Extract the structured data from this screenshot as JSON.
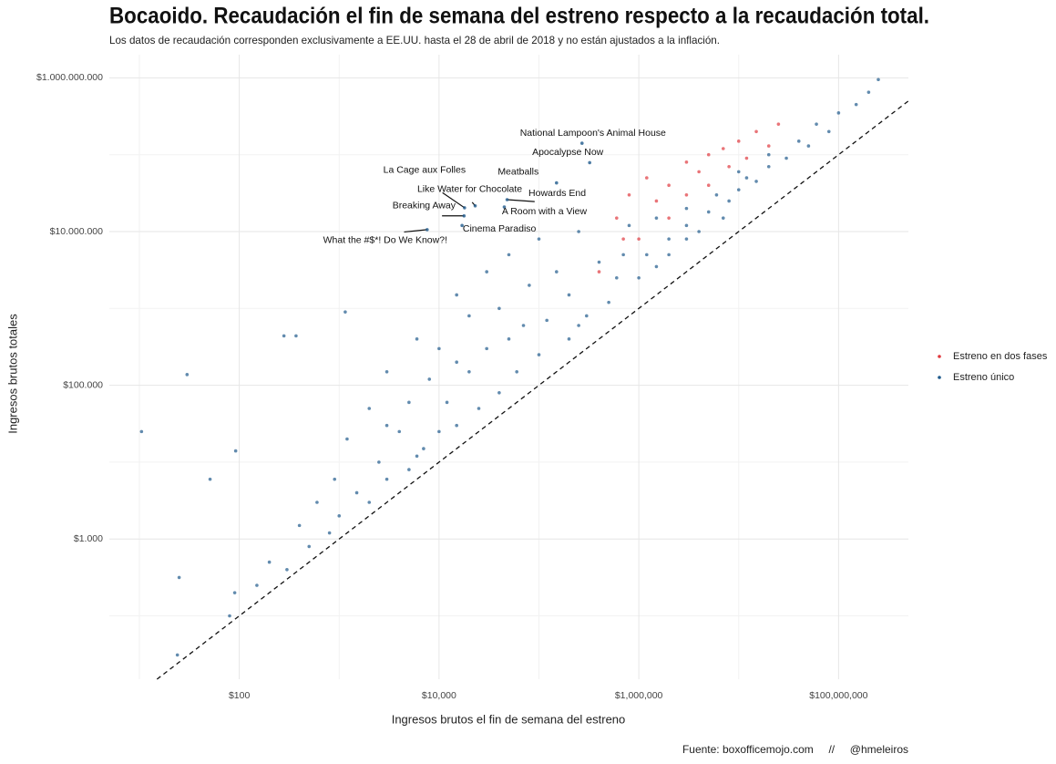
{
  "chart_data": {
    "type": "scatter",
    "title": "Bocaoido. Recaudación el fin de semana del estreno respecto a la recaudación total.",
    "subtitle": "Los datos de recaudación corresponden exclusivamente a EE.UU. hasta el 28 de abril de 2018 y no están ajustados a la inflación.",
    "x_label": "Ingresos brutos el fin de semana del estreno",
    "y_label": "Ingresos brutos totales",
    "caption": "Fuente: boxofficemojo.com     //     @hmeleiros",
    "x_log": true,
    "y_log": true,
    "grid": true,
    "identity_line": true,
    "legend": "right",
    "xlim": [
      5,
      500000000
    ],
    "ylim": [
      15,
      2000000000
    ],
    "xticks": [
      {
        "value": 100,
        "label": "$100"
      },
      {
        "value": 10000,
        "label": "$10,000"
      },
      {
        "value": 1000000,
        "label": "$1,000,000"
      },
      {
        "value": 100000000,
        "label": "$100,000,000"
      }
    ],
    "yticks": [
      {
        "value": 1000,
        "label": "$1.000"
      },
      {
        "value": 100000,
        "label": "$100.000"
      },
      {
        "value": 10000000,
        "label": "$10.000.000"
      },
      {
        "value": 1000000000,
        "label": "$1.000.000.000"
      }
    ],
    "x_minor_grid": [
      10,
      1000,
      100000,
      10000000
    ],
    "y_minor_grid": [
      100,
      10000,
      1000000,
      100000000
    ],
    "series": [
      {
        "name": "Estreno en dos fases",
        "color": "#e0393e",
        "x": [
          600000,
          800000,
          1000000,
          1200000,
          1500000,
          2000000,
          2000000,
          3000000,
          3000000,
          4000000,
          5000000,
          5000000,
          7000000,
          8000000,
          10000000,
          12000000,
          15000000,
          20000000,
          25000000,
          400000,
          700000
        ],
        "values": [
          15000000,
          30000000,
          8000000,
          50000000,
          25000000,
          40000000,
          15000000,
          80000000,
          30000000,
          60000000,
          100000000,
          40000000,
          120000000,
          70000000,
          150000000,
          90000000,
          200000000,
          130000000,
          250000000,
          3000000,
          8000000
        ]
      },
      {
        "name": "Estreno único",
        "color": "#1f5a8c",
        "x": [
          10.5,
          30,
          24,
          25,
          51,
          92,
          280,
          370,
          1150,
          80,
          90,
          150,
          200,
          300,
          400,
          500,
          600,
          800,
          900,
          1000,
          1200,
          1500,
          2000,
          2000,
          2500,
          3000,
          3000,
          4000,
          5000,
          5000,
          6000,
          7000,
          8000,
          10000,
          10000,
          12000,
          15000,
          15000,
          20000,
          20000,
          25000,
          30000,
          30000,
          40000,
          40000,
          50000,
          60000,
          70000,
          80000,
          100000,
          100000,
          120000,
          150000,
          200000,
          200000,
          250000,
          300000,
          400000,
          500000,
          600000,
          800000,
          1000000,
          1200000,
          1500000,
          2000000,
          2000000,
          3000000,
          3000000,
          4000000,
          5000000,
          6000000,
          8000000,
          10000000,
          10000000,
          15000000,
          20000000,
          20000000,
          30000000,
          40000000,
          50000000,
          60000000,
          80000000,
          100000000,
          150000000,
          200000000,
          250000000,
          3000,
          6000,
          15000,
          50000,
          250000,
          700000,
          1500000,
          3000000,
          7000000,
          12000000
        ],
        "values": [
          25000,
          138000,
          31,
          316,
          6000,
          14000,
          440000,
          440000,
          900000,
          100,
          200,
          250,
          500,
          400,
          1500,
          800,
          3000,
          1200,
          6000,
          2000,
          20000,
          4000,
          3000,
          50000,
          10000,
          6000,
          150000,
          25000,
          8000,
          60000,
          400000,
          15000,
          120000,
          25000,
          300000,
          60000,
          1500000,
          30000,
          150000,
          800000,
          50000,
          3000000,
          300000,
          80000,
          1000000,
          5000000,
          150000,
          600000,
          2000000,
          250000,
          8000000,
          700000,
          3000000,
          400000,
          1500000,
          10000000,
          800000,
          4000000,
          1200000,
          2500000,
          12000000,
          2500000,
          5000000,
          3500000,
          8000000,
          5000000,
          12000000,
          20000000,
          10000000,
          18000000,
          30000000,
          25000000,
          35000000,
          60000000,
          45000000,
          70000000,
          100000000,
          90000000,
          150000000,
          130000000,
          250000000,
          200000000,
          350000000,
          450000000,
          650000000,
          950000000,
          30000,
          12000,
          200000,
          400000,
          600000,
          5000000,
          15000000,
          8000000,
          15000000,
          50000000
        ]
      }
    ],
    "annotations": [
      {
        "text": "National Lampoon's Animal House",
        "x": 270000,
        "y": 141000000
      },
      {
        "text": "Apocalypse Now",
        "x": 322000,
        "y": 78800000
      },
      {
        "text": "Meatballs",
        "x": 150000,
        "y": 43000000
      },
      {
        "text": "La Cage aux Folles",
        "x": 18000,
        "y": 20400000
      },
      {
        "text": "Like Water for Chocolate",
        "x": 23000,
        "y": 21600000
      },
      {
        "text": "Howards End",
        "x": 48000,
        "y": 26000000
      },
      {
        "text": "A Room with a View",
        "x": 45000,
        "y": 20900000
      },
      {
        "text": "Breaking Away",
        "x": 17800,
        "y": 16000000
      },
      {
        "text": "Cinema Paradiso",
        "x": 17000,
        "y": 12000000
      },
      {
        "text": "What the #$*! Do We Know?!",
        "x": 7600,
        "y": 10600000
      }
    ]
  }
}
